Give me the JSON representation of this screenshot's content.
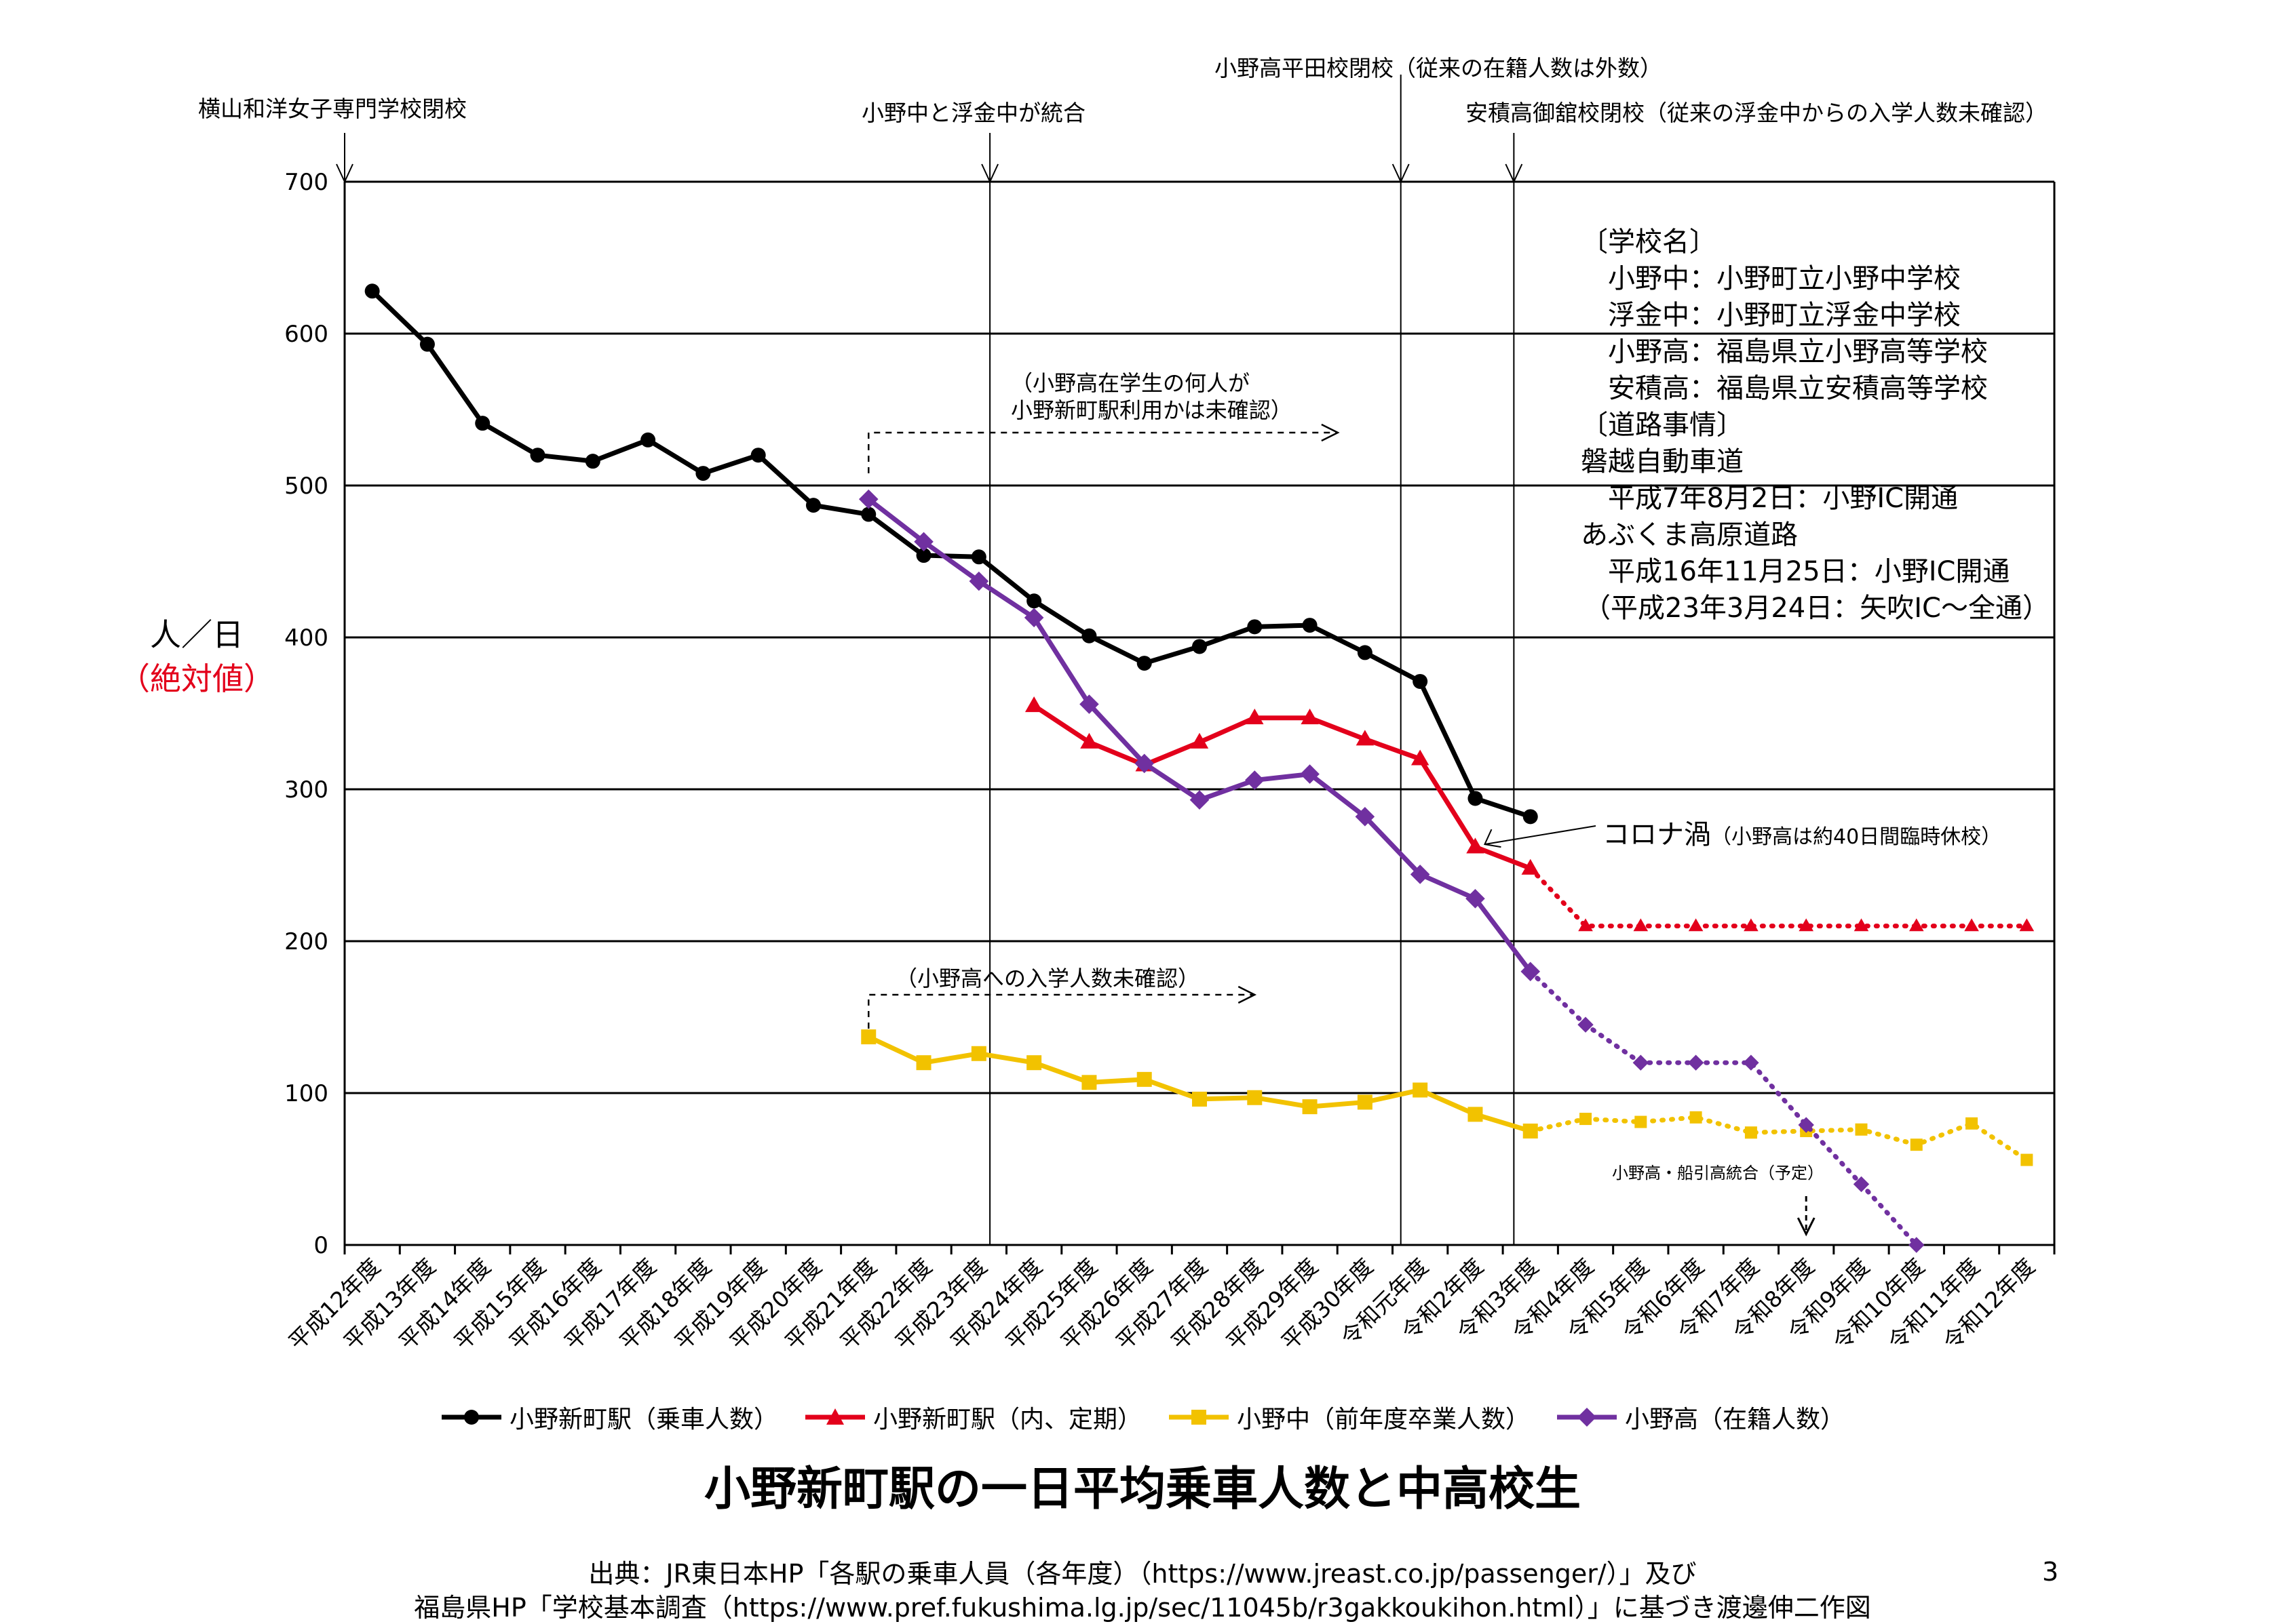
{
  "chart_data": {
    "type": "line",
    "title": "小野新町駅の一日平均乗車人数と中高校生",
    "ylabel": "人／日",
    "ylabel_sub": "（絶対値）",
    "ylim": [
      0,
      700
    ],
    "yticks": [
      0,
      100,
      200,
      300,
      400,
      500,
      600,
      700
    ],
    "categories": [
      "平成12年度",
      "平成13年度",
      "平成14年度",
      "平成15年度",
      "平成16年度",
      "平成17年度",
      "平成18年度",
      "平成19年度",
      "平成20年度",
      "平成21年度",
      "平成22年度",
      "平成23年度",
      "平成24年度",
      "平成25年度",
      "平成26年度",
      "平成27年度",
      "平成28年度",
      "平成29年度",
      "平成30年度",
      "令和元年度",
      "令和2年度",
      "令和3年度",
      "令和4年度",
      "令和5年度",
      "令和6年度",
      "令和7年度",
      "令和8年度",
      "令和9年度",
      "令和10年度",
      "令和11年度",
      "令和12年度"
    ],
    "series": [
      {
        "name": "小野新町駅（乗車人数）",
        "color": "#000000",
        "marker": "circle",
        "values": [
          628,
          593,
          541,
          520,
          516,
          530,
          508,
          520,
          487,
          481,
          454,
          453,
          424,
          401,
          383,
          394,
          407,
          408,
          390,
          371,
          294,
          282,
          null,
          null,
          null,
          null,
          null,
          null,
          null,
          null,
          null
        ],
        "dotted_values": []
      },
      {
        "name": "小野新町駅（内、定期）",
        "color": "#e3001b",
        "marker": "triangle",
        "values": [
          null,
          null,
          null,
          null,
          null,
          null,
          null,
          null,
          null,
          null,
          null,
          null,
          355,
          331,
          316,
          331,
          347,
          347,
          333,
          320,
          262,
          248,
          null,
          null,
          null,
          null,
          null,
          null,
          null,
          null,
          null
        ],
        "dotted_values": [
          null,
          null,
          null,
          null,
          null,
          null,
          null,
          null,
          null,
          null,
          null,
          null,
          null,
          null,
          null,
          null,
          null,
          null,
          null,
          null,
          null,
          248,
          210,
          210,
          210,
          210,
          210,
          210,
          210,
          210,
          210
        ]
      },
      {
        "name": "小野中（前年度卒業人数）",
        "color": "#f2c200",
        "marker": "square",
        "values": [
          null,
          null,
          null,
          null,
          null,
          null,
          null,
          null,
          null,
          137,
          120,
          126,
          120,
          107,
          109,
          96,
          97,
          91,
          94,
          102,
          86,
          75,
          null,
          null,
          null,
          null,
          null,
          null,
          null,
          null,
          null
        ],
        "dotted_values": [
          null,
          null,
          null,
          null,
          null,
          null,
          null,
          null,
          null,
          null,
          null,
          null,
          null,
          null,
          null,
          null,
          null,
          null,
          null,
          null,
          null,
          75,
          83,
          81,
          84,
          74,
          75,
          76,
          66,
          80,
          56
        ]
      },
      {
        "name": "小野高（在籍人数）",
        "color": "#7030a0",
        "marker": "diamond",
        "values": [
          null,
          null,
          null,
          null,
          null,
          null,
          null,
          null,
          null,
          491,
          463,
          437,
          413,
          356,
          317,
          293,
          306,
          310,
          282,
          244,
          228,
          180,
          null,
          null,
          null,
          null,
          null,
          null,
          null,
          null,
          null
        ],
        "dotted_values": [
          null,
          null,
          null,
          null,
          null,
          null,
          null,
          null,
          null,
          null,
          null,
          null,
          null,
          null,
          null,
          null,
          null,
          null,
          null,
          null,
          null,
          180,
          145,
          120,
          120,
          120,
          79,
          40,
          0,
          null,
          null
        ]
      }
    ],
    "annotations": [
      {
        "text": "横山和洋女子専門学校閉校",
        "category": "平成12年度"
      },
      {
        "text": "小野中と浮金中が統合",
        "category": "平成23年度"
      },
      {
        "text": "小野高平田校閉校（従来の在籍人数は外数）",
        "category": "令和元年度"
      },
      {
        "text": "安積高御舘校閉校（従来の浮金中からの入学人数未確認）",
        "category": "令和3年度"
      },
      {
        "text": "小野高・船引高統合（予定）",
        "category": "令和8年度"
      },
      {
        "line1": "（小野高在学生の何人が",
        "line2": "小野新町駅利用かは未確認）"
      },
      {
        "text": "（小野高への入学人数未確認）"
      },
      {
        "main": "コロナ渦",
        "sub": "（小野高は約40日間臨時休校）"
      }
    ],
    "grid": true,
    "legend": "bottom"
  },
  "info_box": [
    "〔学校名〕",
    "小野中：小野町立小野中学校",
    "浮金中：小野町立浮金中学校",
    "小野高：福島県立小野高等学校",
    "安積高：福島県立安積高等学校",
    "〔道路事情〕",
    "磐越自動車道",
    "平成7年8月2日：小野IC開通",
    "あぶくま高原道路",
    "平成16年11月25日：小野IC開通",
    "（平成23年3月24日：矢吹IC～全通）"
  ],
  "source_line1": "出典：JR東日本HP「各駅の乗車人員（各年度）（https://www.jreast.co.jp/passenger/）」及び",
  "source_line2": "福島県HP「学校基本調査（https://www.pref.fukushima.lg.jp/sec/11045b/r3gakkoukihon.html）」に基づき渡邊伸二作図",
  "page_number": "3"
}
